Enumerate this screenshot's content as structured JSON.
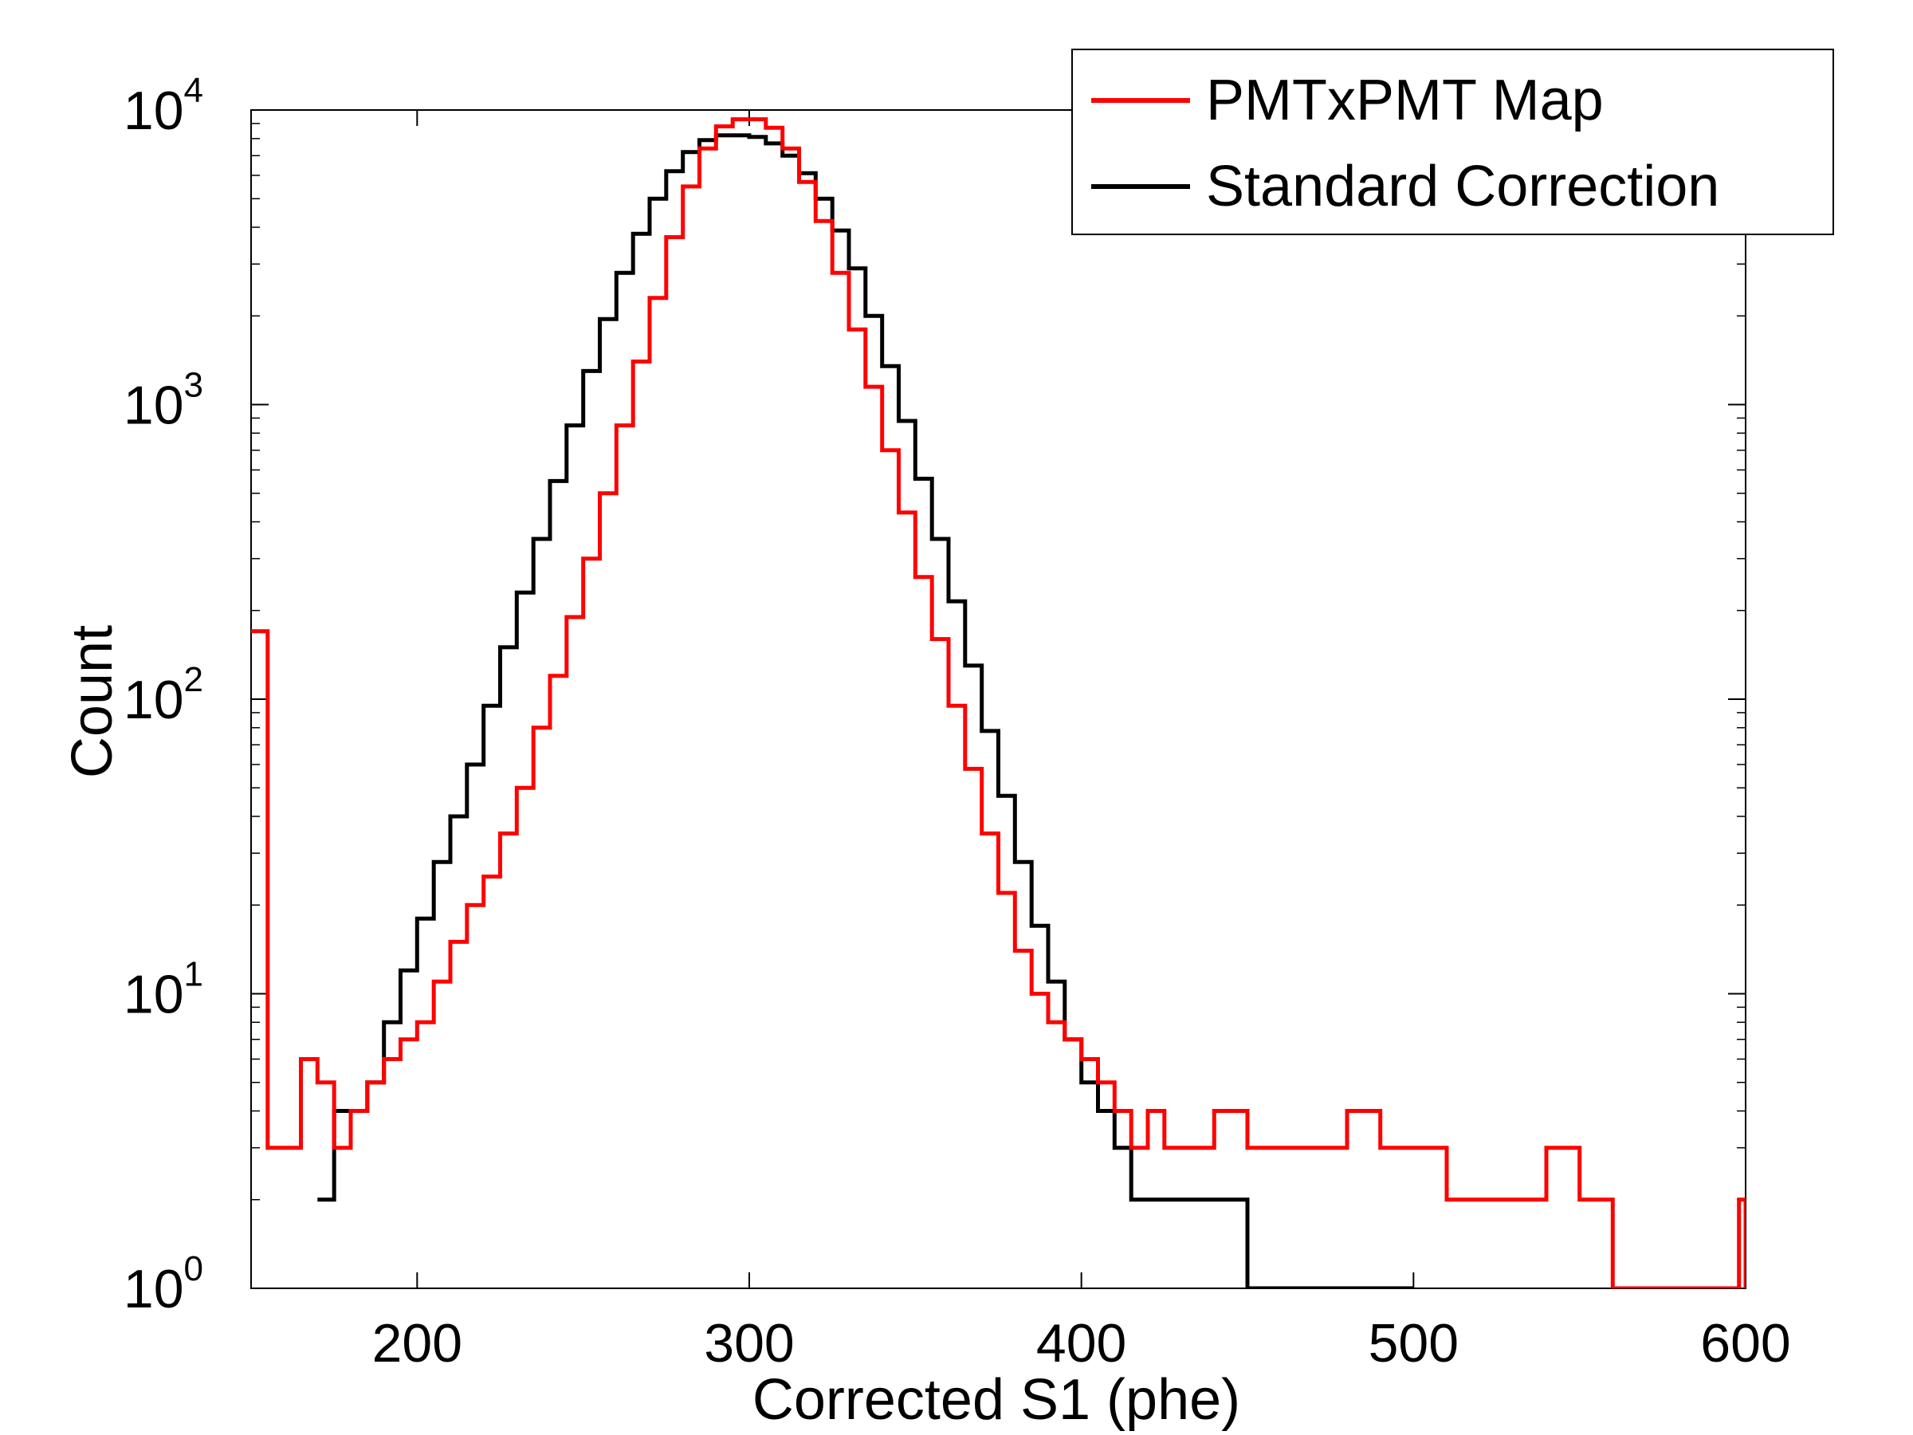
{
  "chart_data": {
    "type": "line",
    "title": "",
    "xlabel": "Corrected S1 (phe)",
    "ylabel": "Count",
    "xlim": [
      150,
      600
    ],
    "ylim": [
      1,
      10000
    ],
    "yscale": "log",
    "grid": false,
    "legend_position": "top-right",
    "xticks": [
      200,
      300,
      400,
      500,
      600
    ],
    "yticks": [
      {
        "base": "10",
        "exp": "0",
        "value": 1
      },
      {
        "base": "10",
        "exp": "1",
        "value": 10
      },
      {
        "base": "10",
        "exp": "2",
        "value": 100
      },
      {
        "base": "10",
        "exp": "3",
        "value": 1000
      },
      {
        "base": "10",
        "exp": "4",
        "value": 10000
      }
    ],
    "series": [
      {
        "name": "PMTxPMT Map",
        "color": "#ff0000",
        "x": [
          150,
          155,
          160,
          165,
          170,
          175,
          180,
          185,
          190,
          195,
          200,
          205,
          210,
          215,
          220,
          225,
          230,
          235,
          240,
          245,
          250,
          255,
          260,
          265,
          270,
          275,
          280,
          285,
          290,
          295,
          300,
          305,
          310,
          315,
          320,
          325,
          330,
          335,
          340,
          345,
          350,
          355,
          360,
          365,
          370,
          375,
          380,
          385,
          390,
          395,
          400,
          405,
          410,
          415,
          420,
          425,
          430,
          440,
          450,
          460,
          470,
          480,
          490,
          500,
          510,
          520,
          530,
          540,
          550,
          560,
          570,
          580,
          590,
          598,
          600
        ],
        "y": [
          170,
          3,
          3,
          6,
          5,
          3,
          4,
          5,
          6,
          7,
          8,
          11,
          15,
          20,
          25,
          35,
          50,
          80,
          120,
          190,
          300,
          500,
          850,
          1400,
          2300,
          3700,
          5500,
          7400,
          8800,
          9300,
          9300,
          8700,
          7400,
          5700,
          4200,
          2800,
          1800,
          1150,
          700,
          430,
          260,
          160,
          95,
          58,
          35,
          22,
          14,
          10,
          8,
          7,
          6,
          5,
          4,
          3,
          4,
          3,
          3,
          4,
          3,
          3,
          3,
          4,
          3,
          3,
          2,
          2,
          2,
          3,
          2,
          1,
          1,
          1,
          1,
          2,
          1
        ]
      },
      {
        "name": "Standard Correction",
        "color": "#000000",
        "x": [
          170,
          175,
          180,
          185,
          190,
          195,
          200,
          205,
          210,
          215,
          220,
          225,
          230,
          235,
          240,
          245,
          250,
          255,
          260,
          265,
          270,
          275,
          280,
          285,
          290,
          295,
          300,
          305,
          310,
          315,
          320,
          325,
          330,
          335,
          340,
          345,
          350,
          355,
          360,
          365,
          370,
          375,
          380,
          385,
          390,
          395,
          400,
          405,
          410,
          415,
          420,
          430,
          440,
          450,
          460,
          480,
          500
        ],
        "y": [
          2,
          4,
          4,
          5,
          8,
          12,
          18,
          28,
          40,
          60,
          95,
          150,
          230,
          350,
          550,
          850,
          1300,
          1950,
          2800,
          3800,
          5000,
          6200,
          7200,
          7900,
          8200,
          8200,
          8100,
          7700,
          7000,
          6100,
          5000,
          3900,
          2900,
          2000,
          1350,
          880,
          560,
          350,
          215,
          130,
          78,
          47,
          28,
          17,
          11,
          7,
          5,
          4,
          3,
          2,
          2,
          2,
          2,
          1,
          1,
          1,
          1
        ]
      }
    ]
  }
}
